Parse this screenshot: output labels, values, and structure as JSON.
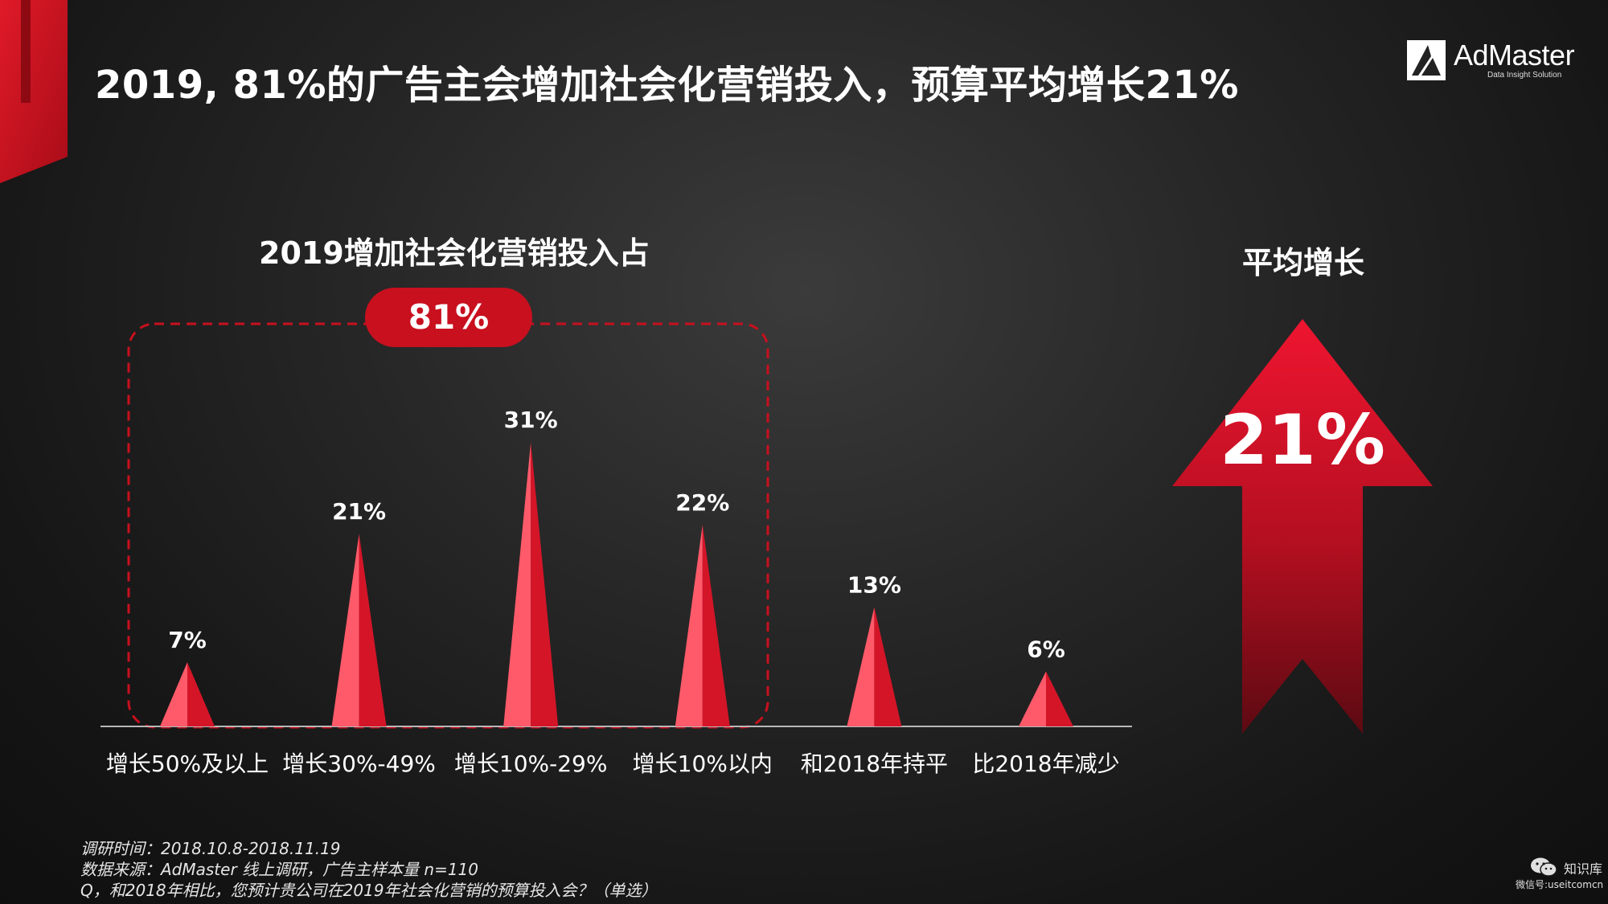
{
  "title": "2019, 81%的广告主会增加社会化营销投入，预算平均增长21%",
  "logo": {
    "brand": "AdMaster",
    "tagline": "Data Insight Solution"
  },
  "colors": {
    "accent": "#c8101e",
    "spike_light": "#ff5a6a",
    "spike_dark": "#d41528",
    "background": "#1c1c1c"
  },
  "chart_data": [
    {
      "type": "bar",
      "title": "2019增加社会化营销投入占",
      "categories": [
        "增长50%及以上",
        "增长30%-49%",
        "增长10%-29%",
        "增长10%以内",
        "和2018年持平",
        "比2018年减少"
      ],
      "values": [
        7,
        21,
        31,
        22,
        13,
        6
      ],
      "value_labels": [
        "7%",
        "21%",
        "31%",
        "22%",
        "13%",
        "6%"
      ],
      "unit": "%",
      "ylim": [
        0,
        31
      ],
      "grid": false,
      "group_highlight": {
        "label": "81%",
        "categories": [
          "增长50%及以上",
          "增长30%-49%",
          "增长10%-29%",
          "增长10%以内"
        ]
      }
    }
  ],
  "average": {
    "title": "平均增长",
    "value": "21%"
  },
  "notes": [
    "调研时间：2018.10.8-2018.11.19",
    "数据来源：AdMaster  线上调研，广告主样本量 n=110",
    "Q，和2018年相比，您预计贵公司在2019年社会化营销的预算投入会？（单选）"
  ],
  "watermark": {
    "name": "知识库",
    "sub": "微信号:useitcomcn"
  }
}
